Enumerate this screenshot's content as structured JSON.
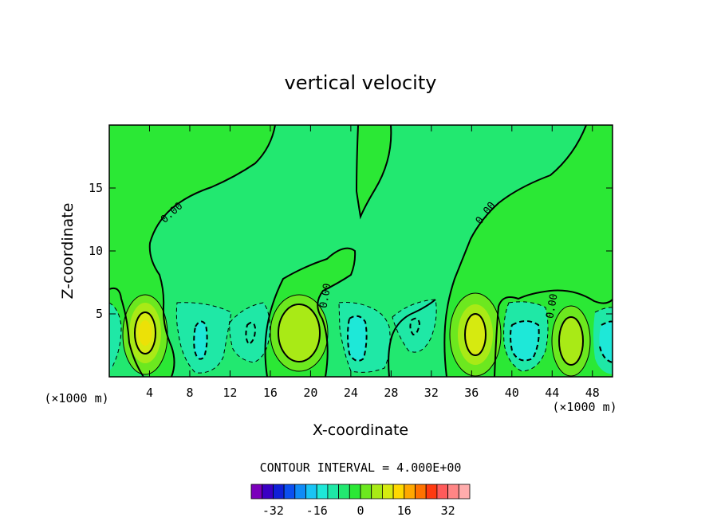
{
  "chart_data": {
    "type": "contour",
    "title": "vertical velocity",
    "xlabel": "X-coordinate",
    "ylabel": "Z-coordinate",
    "x_unit": "(×1000 m)",
    "y_unit": "(×1000 m)",
    "xlim": [
      0,
      50
    ],
    "ylim": [
      0,
      20
    ],
    "x_ticks": [
      4,
      8,
      12,
      16,
      20,
      24,
      28,
      32,
      36,
      40,
      44,
      48
    ],
    "x_tick_labels": [
      "4",
      "8",
      "12",
      "16",
      "20",
      "24",
      "28",
      "32",
      "36",
      "40",
      "44",
      "48"
    ],
    "y_ticks": [
      5,
      10,
      15
    ],
    "y_tick_labels": [
      "5",
      "10",
      "15"
    ],
    "contour_interval_text": "CONTOUR INTERVAL = 4.000E+00",
    "contour_interval": 4,
    "zero_contour_label": "0.00",
    "colorbar": {
      "colors": [
        "#7b00bb",
        "#3a00c4",
        "#1020d8",
        "#0b4ff0",
        "#0f8bf7",
        "#19c4f5",
        "#1ee8d8",
        "#1fe8a6",
        "#22e870",
        "#2be835",
        "#6ce81f",
        "#a9ea16",
        "#d6ea10",
        "#ffd800",
        "#ffa800",
        "#ff7200",
        "#ff3a10",
        "#ff5a5a",
        "#ff8585",
        "#ffacac"
      ],
      "tick_labels": [
        "-32",
        "-16",
        "0",
        "16",
        "32"
      ],
      "tick_values": [
        -32,
        -16,
        0,
        16,
        32
      ]
    },
    "features": [
      {
        "kind": "updraft",
        "x_center": 3.5,
        "z_center": 3.5,
        "peak": 12
      },
      {
        "kind": "updraft",
        "x_center": 19.2,
        "z_center": 3.5,
        "peak": 8
      },
      {
        "kind": "updraft",
        "x_center": 36.3,
        "z_center": 3.3,
        "peak": 12
      },
      {
        "kind": "updraft",
        "x_center": 45.8,
        "z_center": 3.0,
        "peak": 8
      },
      {
        "kind": "downdraft",
        "x_center": 9.8,
        "z_center": 2.8,
        "peak": -8
      },
      {
        "kind": "downdraft",
        "x_center": 14.0,
        "z_center": 3.5,
        "peak": -4
      },
      {
        "kind": "downdraft",
        "x_center": 25.0,
        "z_center": 3.0,
        "peak": -8
      },
      {
        "kind": "downdraft",
        "x_center": 30.3,
        "z_center": 4.0,
        "peak": -4
      },
      {
        "kind": "downdraft",
        "x_center": 40.8,
        "z_center": 2.8,
        "peak": -8
      },
      {
        "kind": "downdraft",
        "x_center": 49.0,
        "z_center": 3.0,
        "peak": -8
      }
    ]
  }
}
